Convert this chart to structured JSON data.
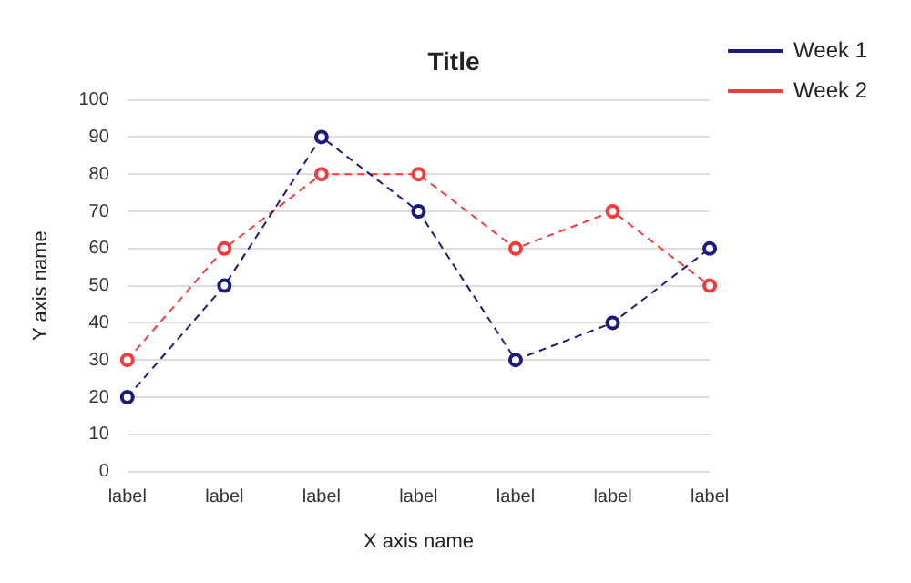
{
  "chart_data": {
    "type": "line",
    "title": "Title",
    "xlabel": "X axis name",
    "ylabel": "Y axis name",
    "categories": [
      "label",
      "label",
      "label",
      "label",
      "label",
      "label",
      "label"
    ],
    "series": [
      {
        "name": "Week 1",
        "color": "#1c1a7c",
        "values": [
          20,
          50,
          90,
          70,
          30,
          40,
          60
        ]
      },
      {
        "name": "Week 2",
        "color": "#f03c3c",
        "values": [
          30,
          60,
          80,
          80,
          60,
          70,
          50
        ]
      }
    ],
    "ylim": [
      0,
      100
    ],
    "yticks": [
      0,
      10,
      20,
      30,
      40,
      50,
      60,
      70,
      80,
      90,
      100
    ],
    "grid": "y",
    "legend": "top right",
    "marker": "circle",
    "line_style": "dashed"
  }
}
